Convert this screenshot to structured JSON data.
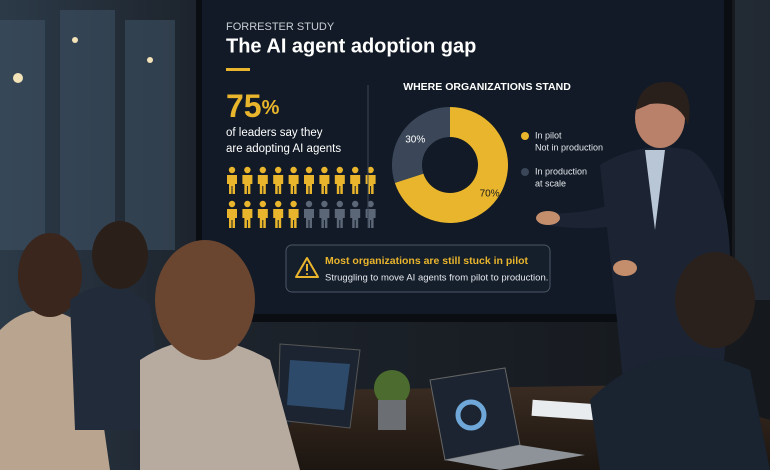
{
  "screen": {
    "kicker": "FORRESTER STUDY",
    "title": "The AI agent adoption gap",
    "stat": {
      "value": 75,
      "unit": "%",
      "lines": [
        "of leaders say they",
        "are adopting AI agents"
      ]
    },
    "chart_data": {
      "type": "pie",
      "title": "WHERE ORGANIZATIONS STAND",
      "categories": [
        "In pilot",
        "In production"
      ],
      "category_notes": [
        "Not in production",
        "at scale"
      ],
      "values": [
        70,
        30
      ],
      "value_labels": [
        "70%",
        "30%"
      ],
      "colors": [
        "#e9b52c",
        "#3b4759"
      ]
    },
    "callout": {
      "heading": "Most organizations are still stuck in pilot",
      "text": "Struggling to move AI agents from pilot to production."
    }
  }
}
